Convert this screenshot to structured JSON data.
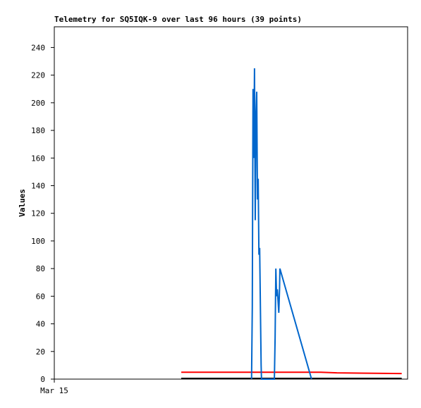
{
  "chart_data": {
    "type": "line",
    "title": "Telemetry for SQ5IQK-9 over last 96 hours (39 points)",
    "y_label": "Values",
    "xlim": [
      0,
      96
    ],
    "xticks": [
      {
        "value": 0,
        "label": "Mar 15"
      }
    ],
    "ylim": [
      0,
      255
    ],
    "yticks": [
      0,
      20,
      40,
      60,
      80,
      100,
      120,
      140,
      160,
      180,
      200,
      220,
      240
    ],
    "series": [
      {
        "color": "#ff0000",
        "x": [
          34.5,
          72.4,
          76.8,
          94.4
        ],
        "values": [
          5,
          5,
          4.5,
          4
        ]
      },
      {
        "color": "#000000",
        "x": [
          34.5,
          94.4
        ],
        "values": [
          0.5,
          0.5
        ]
      },
      {
        "color": "#0066cc",
        "x": [
          53.6,
          53.8,
          54.0,
          54.2,
          54.4,
          54.6,
          54.8,
          55.0,
          55.2,
          55.4,
          55.6,
          55.8,
          56.2,
          56.3,
          59.8,
          60.0,
          60.2,
          60.4,
          60.6,
          61.0,
          61.2,
          61.3,
          69.9
        ],
        "values": [
          0,
          52,
          210,
          160,
          225,
          115,
          190,
          208,
          130,
          145,
          90,
          95,
          10,
          0,
          0,
          30,
          80,
          60,
          65,
          48,
          65,
          80,
          0
        ]
      }
    ]
  }
}
